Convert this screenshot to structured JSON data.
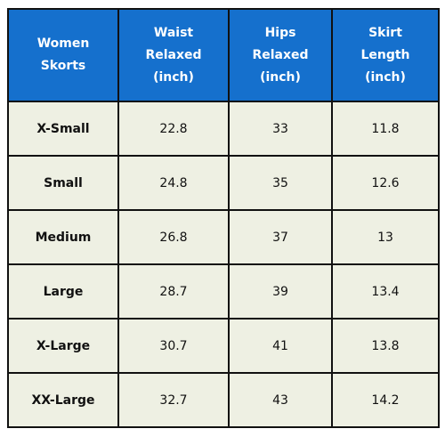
{
  "table": {
    "header": [
      "Women Skorts",
      "Waist Relaxed (inch)",
      "Hips Relaxed (inch)",
      "Skirt Length (inch)"
    ],
    "rows": [
      [
        "X-Small",
        22.8,
        33,
        11.8
      ],
      [
        "Small",
        24.8,
        35,
        12.6
      ],
      [
        "Medium",
        26.8,
        37,
        13
      ],
      [
        "Large",
        28.7,
        39,
        13.4
      ],
      [
        "X-Large",
        30.7,
        41,
        13.8
      ],
      [
        "XX-Large",
        32.7,
        43,
        14.2
      ]
    ]
  }
}
